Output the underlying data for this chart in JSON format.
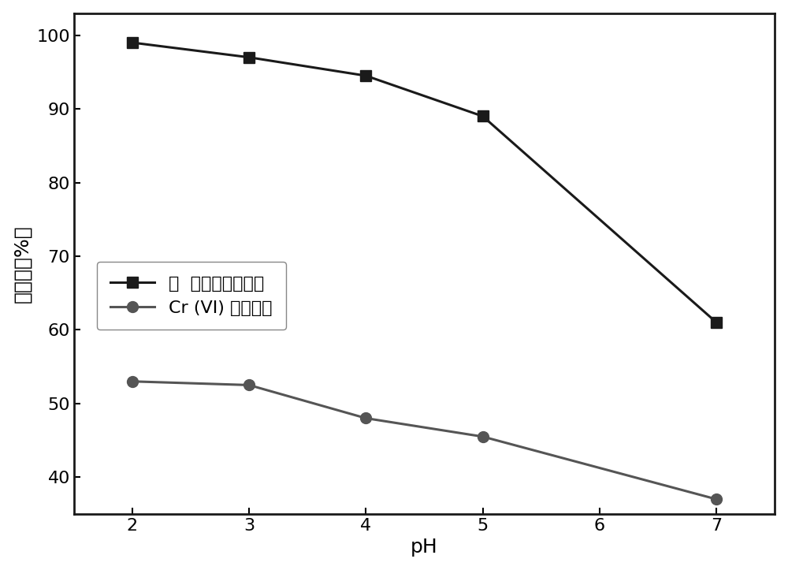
{
  "series1_label": "孔  雀石绿的去除率",
  "series2_label": "Cr (VI) 的去除率",
  "series1_x": [
    2,
    3,
    4,
    5,
    7
  ],
  "series1_y": [
    99,
    97,
    94.5,
    89,
    61
  ],
  "series2_x": [
    2,
    3,
    4,
    5,
    7
  ],
  "series2_y": [
    53,
    52.5,
    48,
    45.5,
    37
  ],
  "series1_color": "#1a1a1a",
  "series2_color": "#555555",
  "marker1": "s",
  "marker2": "o",
  "marker_size1": 10,
  "marker_size2": 10,
  "line_width": 2.2,
  "xlabel": "pH",
  "ylabel": "去除率（%）",
  "xlim": [
    1.5,
    7.5
  ],
  "ylim": [
    35,
    103
  ],
  "xticks": [
    2,
    3,
    4,
    5,
    6,
    7
  ],
  "yticks": [
    40,
    50,
    60,
    70,
    80,
    90,
    100
  ],
  "background_color": "#ffffff",
  "xlabel_fontsize": 18,
  "ylabel_fontsize": 18,
  "tick_fontsize": 16,
  "legend_fontsize": 16,
  "figsize": [
    10.0,
    7.23
  ]
}
